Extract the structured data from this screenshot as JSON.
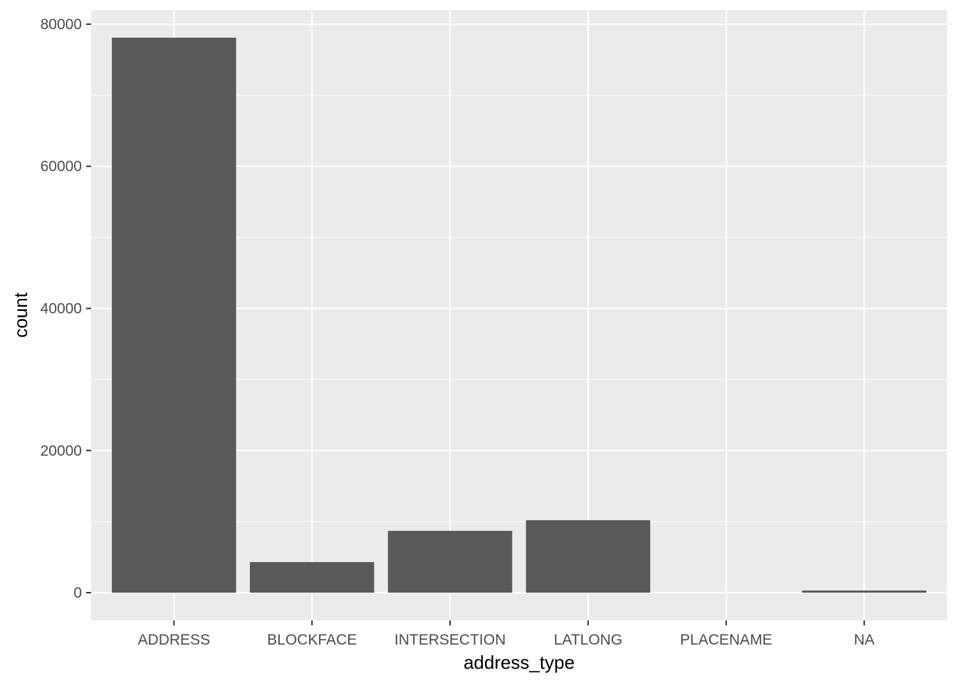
{
  "chart_data": {
    "type": "bar",
    "categories": [
      "ADDRESS",
      "BLOCKFACE",
      "INTERSECTION",
      "LATLONG",
      "PLACENAME",
      "NA"
    ],
    "values": [
      78100,
      4300,
      8700,
      10200,
      0,
      300
    ],
    "xlabel": "address_type",
    "ylabel": "count",
    "ylim": [
      -3900,
      82000
    ],
    "yticks": [
      0,
      20000,
      40000,
      60000,
      80000
    ],
    "ytick_labels": [
      "0",
      "20000",
      "40000",
      "60000",
      "80000"
    ],
    "grid": true,
    "colors": {
      "panel": "#ebebeb",
      "grid_major": "#ffffff",
      "bar": "#595959",
      "tick": "#333333",
      "tick_text": "#4d4d4d"
    }
  }
}
